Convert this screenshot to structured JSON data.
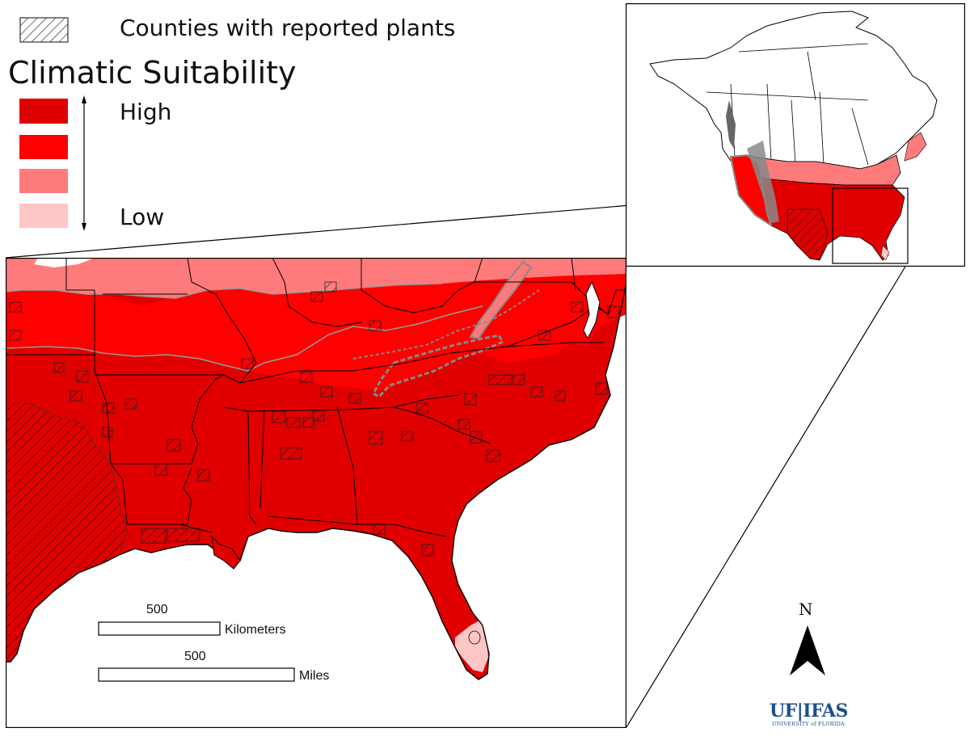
{
  "legend": {
    "hatch_label": "Counties with reported plants",
    "title": "Climatic Suitability",
    "high_label": "High",
    "low_label": "Low",
    "suitability_colors": [
      "#e00000",
      "#ff0000",
      "#ff7b7b",
      "#ffc6c6"
    ]
  },
  "scale_bar": {
    "km_value": "500",
    "km_unit": "Kilometers",
    "mi_value": "500",
    "mi_unit": "Miles"
  },
  "north_arrow": {
    "label": "N"
  },
  "logo": {
    "main": "UF|IFAS",
    "sub": "UNIVERSITY of FLORIDA"
  },
  "colors": {
    "high": "#e00000",
    "mid_high": "#ff0000",
    "mid_low": "#ff7b7b",
    "low": "#ffc6c6",
    "unsuitable_gray": "#888888",
    "logo_blue": "#1f4f8c"
  }
}
